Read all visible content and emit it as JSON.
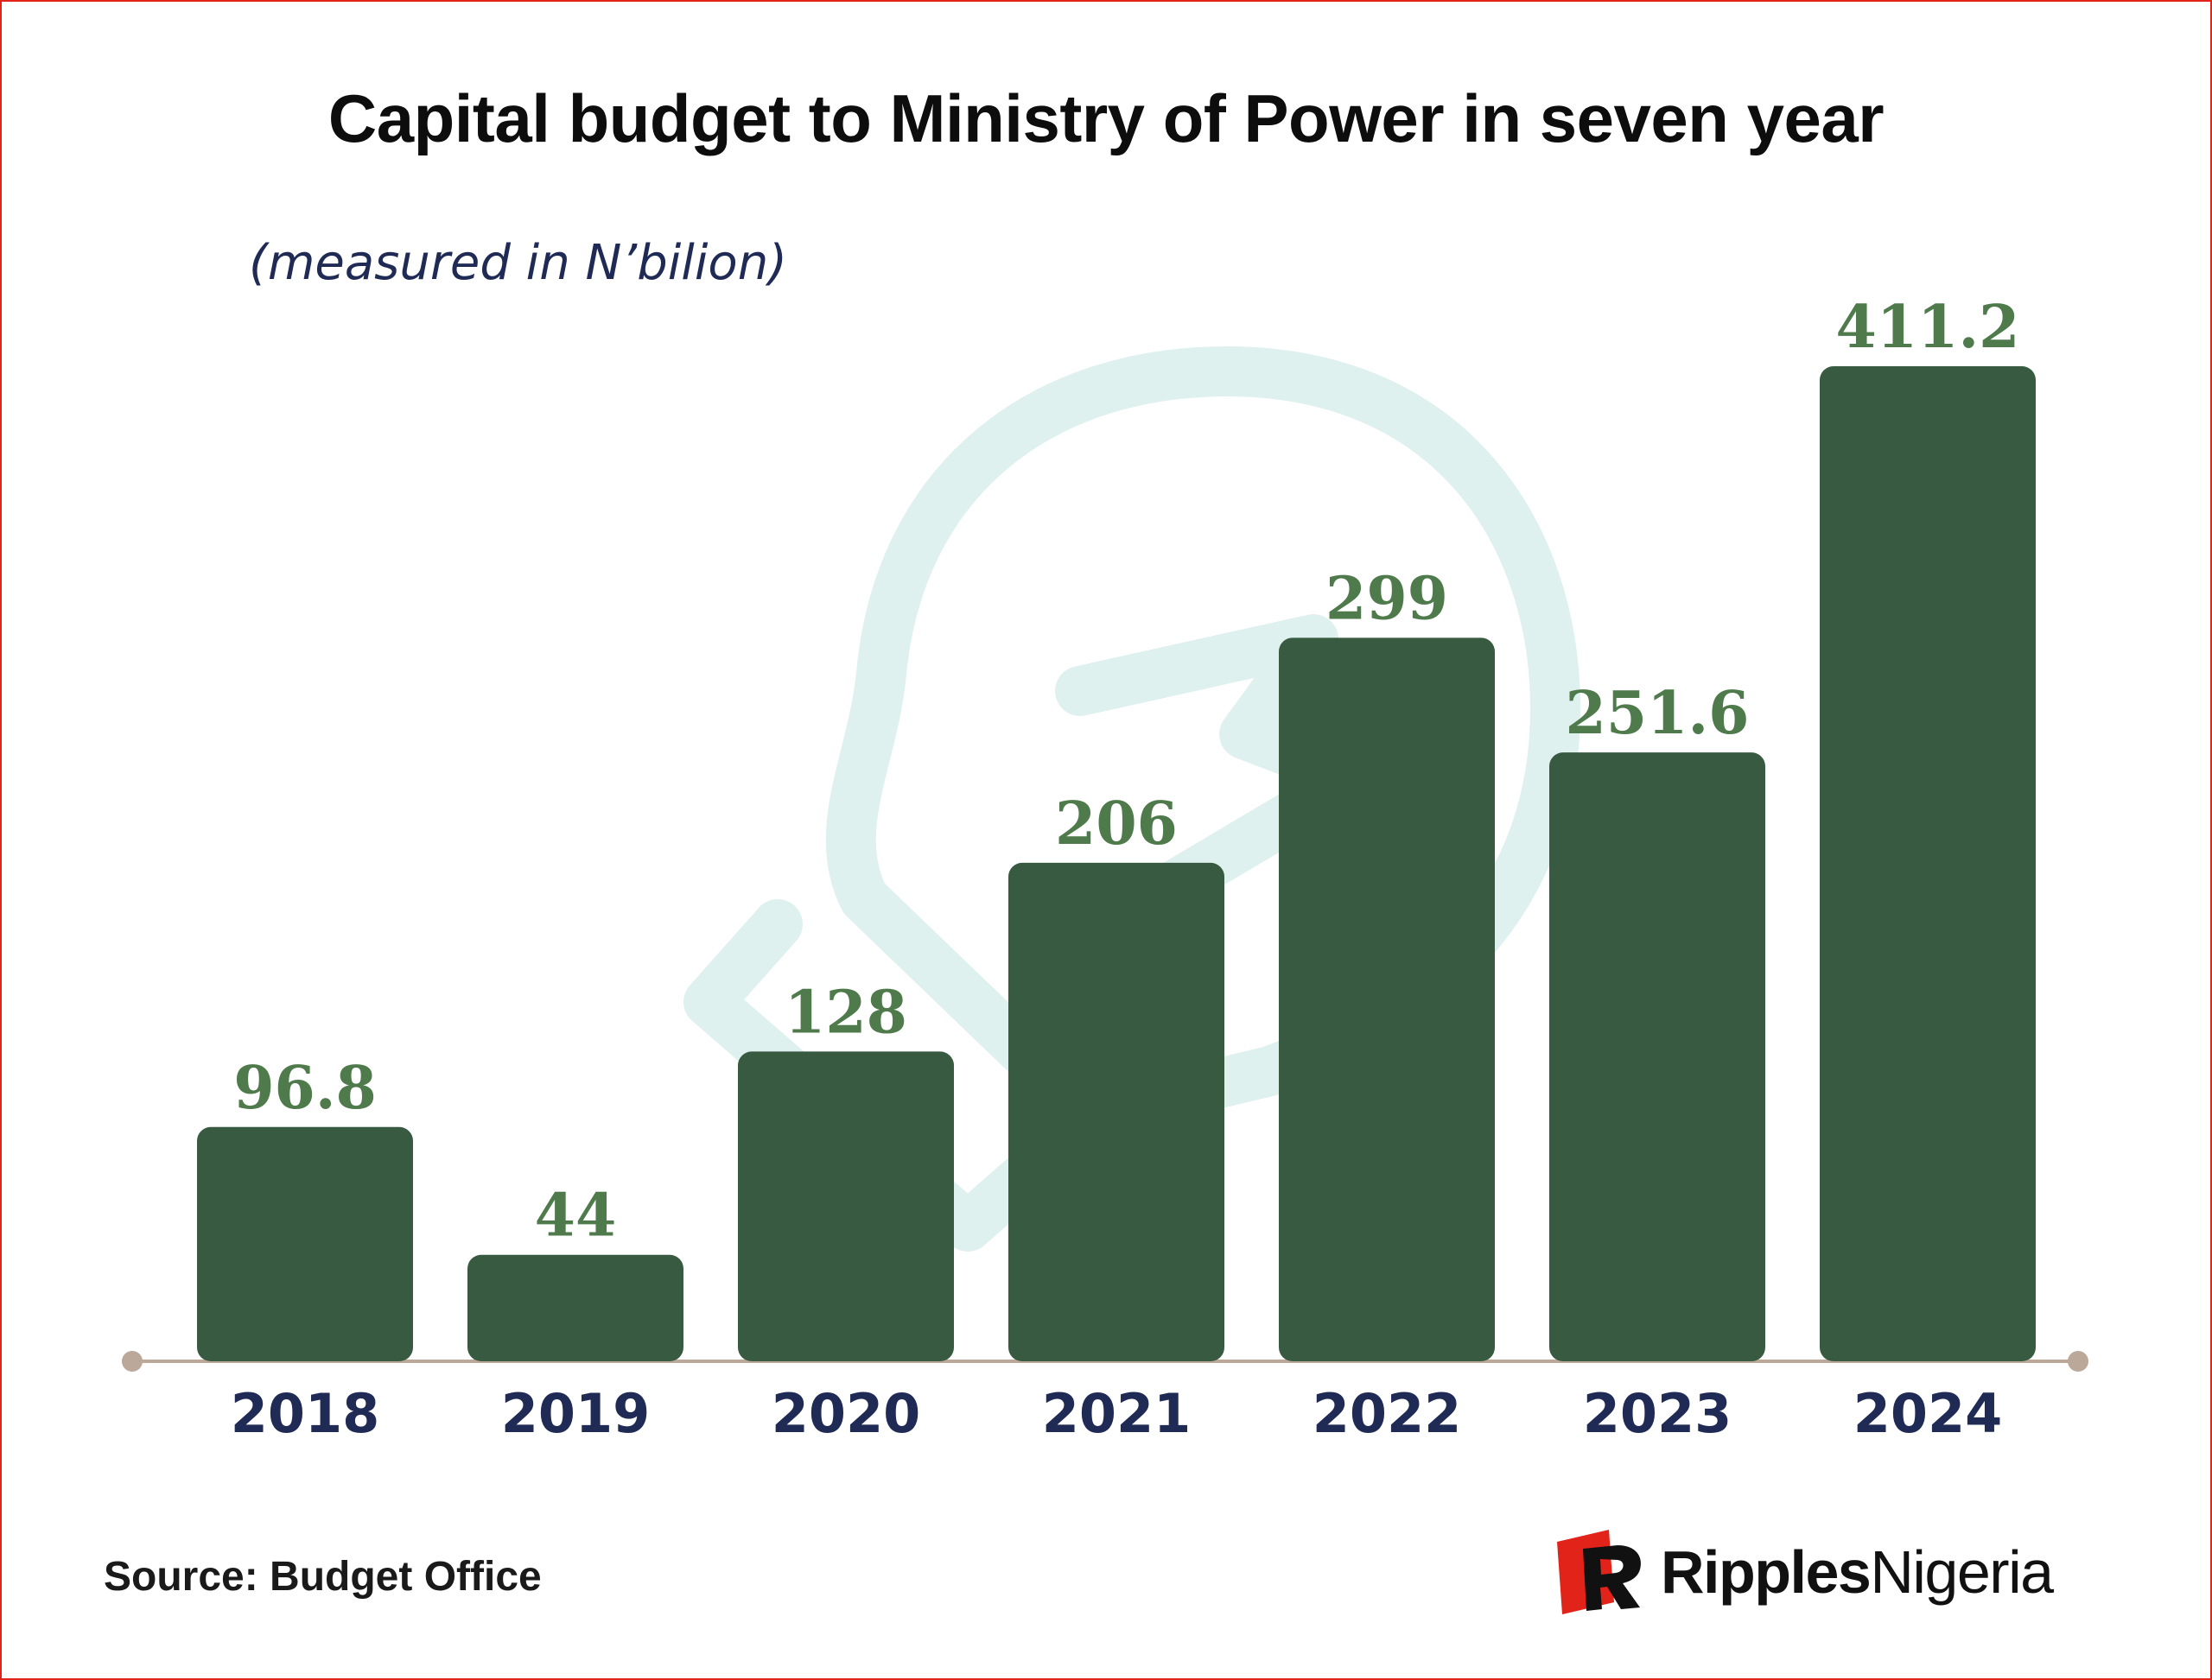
{
  "chart_data": {
    "type": "bar",
    "title": "Capital budget to Ministry of Power in seven year",
    "subtitle": "(measured in N’bilion)",
    "categories": [
      "2018",
      "2019",
      "2020",
      "2021",
      "2022",
      "2023",
      "2024"
    ],
    "values": [
      96.8,
      44,
      128,
      206,
      299,
      251.6,
      411.2
    ],
    "value_labels": [
      "96.8",
      "44",
      "128",
      "206",
      "299",
      "251.6",
      "411.2"
    ],
    "ylim": [
      0,
      411.2
    ],
    "grid": false,
    "legend": "none",
    "colors": {
      "bar": "#385a41",
      "value_label": "#4f7a4b",
      "year_label": "#1f2a55",
      "axis": "#bca898",
      "watermark": "#dff1ee"
    }
  },
  "footer": {
    "source": "Source: Budget Office",
    "brand_bold": "Ripples",
    "brand_light": "Nigeria"
  },
  "icons": {
    "watermark": "lightbulb-bolt-icon",
    "logo": "ripples-logo-icon"
  },
  "colors": {
    "frame": "#e2231a",
    "logo_red": "#e2231a"
  }
}
